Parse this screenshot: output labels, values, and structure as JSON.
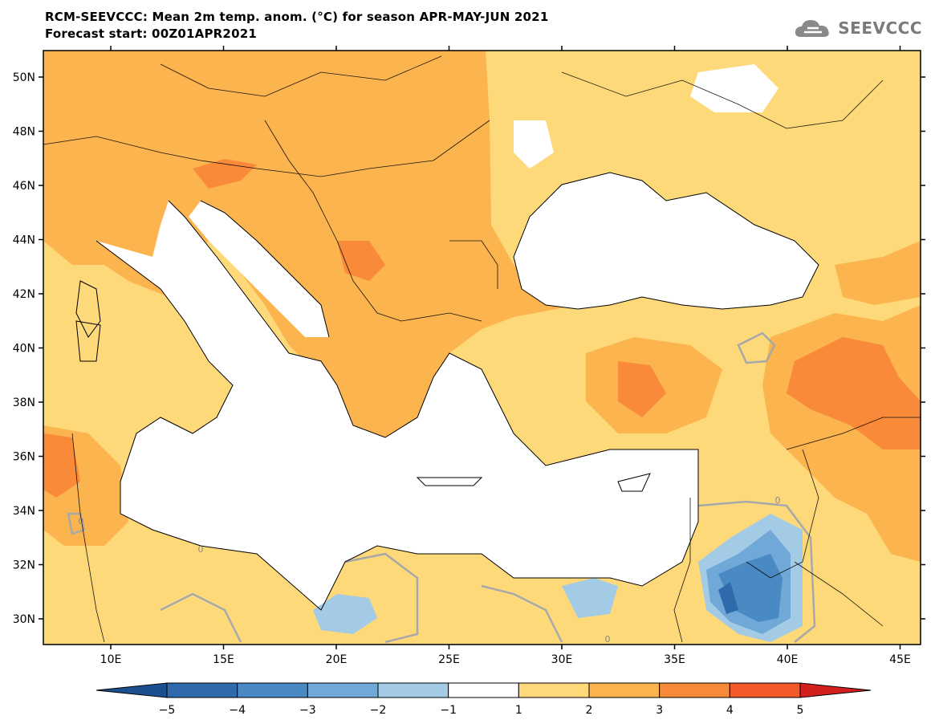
{
  "header": {
    "title": "RCM-SEEVCCC: Mean 2m temp. anom. (°C) for season APR-MAY-JUN 2021",
    "subtitle": "Forecast start: 00Z01APR2021"
  },
  "logo": {
    "text": "SEEVCCC",
    "icon": "cloud-icon"
  },
  "map": {
    "lon_labels": [
      "10E",
      "15E",
      "20E",
      "25E",
      "30E",
      "35E",
      "40E",
      "45E"
    ],
    "lat_labels": [
      "50N",
      "48N",
      "46N",
      "44N",
      "42N",
      "40N",
      "38N",
      "36N",
      "34N",
      "32N",
      "30N"
    ],
    "contour_labels": [
      "0",
      "0",
      "0",
      "0"
    ],
    "land_color": "#fdd97a",
    "sea_color": "#ffffff"
  },
  "colorbar": {
    "ticks": [
      "−5",
      "−4",
      "−3",
      "−2",
      "−1",
      "1",
      "2",
      "3",
      "4",
      "5"
    ],
    "colors": [
      "#1b4f8f",
      "#2f6aac",
      "#4a8ac4",
      "#70a9d7",
      "#a3cbe6",
      "#ffffff",
      "#fdd97a",
      "#fbb44e",
      "#f88a39",
      "#f25a2b",
      "#d41f1f"
    ]
  }
}
